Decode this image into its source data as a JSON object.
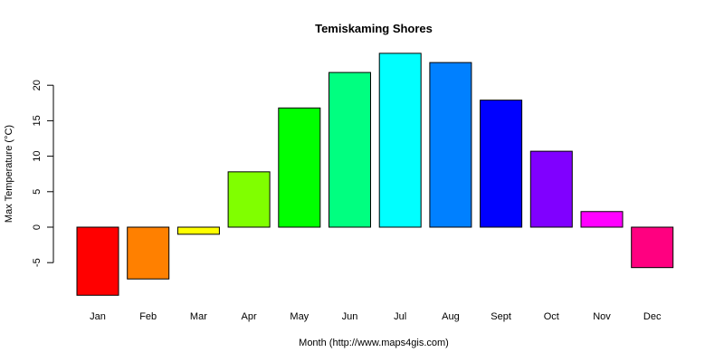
{
  "chart_data": {
    "type": "bar",
    "title": "Temiskaming Shores",
    "xlabel": "Month (http://www.maps4gis.com)",
    "ylabel": "Max Temperature (°C)",
    "categories": [
      "Jan",
      "Feb",
      "Mar",
      "Apr",
      "May",
      "Jun",
      "Jul",
      "Aug",
      "Sept",
      "Oct",
      "Nov",
      "Dec"
    ],
    "values": [
      -9.6,
      -7.3,
      -1.0,
      7.8,
      16.8,
      21.8,
      24.5,
      23.2,
      17.9,
      10.7,
      2.2,
      -5.7
    ],
    "colors": [
      "#FF0000",
      "#FF8000",
      "#FFFF00",
      "#80FF00",
      "#00FF00",
      "#00FF80",
      "#00FFFF",
      "#0080FF",
      "#0000FF",
      "#8000FF",
      "#FF00FF",
      "#FF0080"
    ],
    "yticks": [
      -5,
      0,
      5,
      10,
      15,
      20
    ],
    "ylim": [
      -10,
      25
    ],
    "grid": false,
    "legend": null
  }
}
